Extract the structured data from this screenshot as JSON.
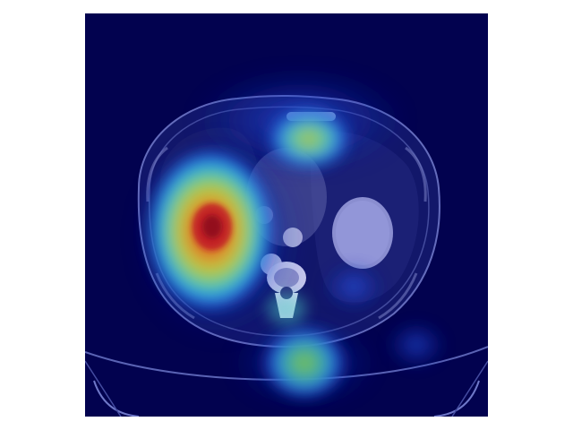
{
  "figure": {
    "kind": "axial CT slice with heatmap overlay",
    "colormap": "jet",
    "background_color": "#02024f",
    "page_background": "#ffffff",
    "overlay_colors": {
      "low": "#0000a0",
      "mid_low": "#1f6bff",
      "mid": "#3ad3c8",
      "mid_high": "#cfe23a",
      "high": "#e2611f",
      "peak": "#c81e1e"
    }
  }
}
